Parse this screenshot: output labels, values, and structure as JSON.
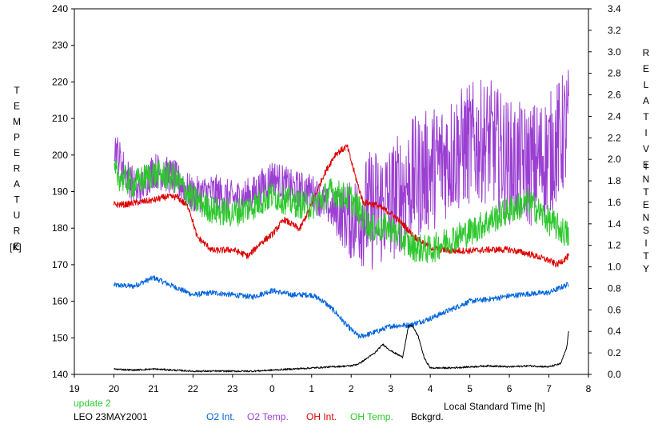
{
  "chart_data": {
    "type": "line",
    "xlabel": "Local Standard Time [h]",
    "x_ticks": [
      "19",
      "20",
      "21",
      "22",
      "23",
      "0",
      "1",
      "2",
      "3",
      "4",
      "5",
      "6",
      "7",
      "8"
    ],
    "x_range_hours": [
      19,
      32
    ],
    "y_left": {
      "label_letters": [
        "T",
        "E",
        "M",
        "P",
        "E",
        "R",
        "A",
        "T",
        "U",
        "R",
        "E"
      ],
      "unit": "[K]",
      "range": [
        140,
        240
      ],
      "ticks": [
        "140",
        "150",
        "160",
        "170",
        "180",
        "190",
        "200",
        "210",
        "220",
        "230",
        "240"
      ]
    },
    "y_right": {
      "label1_letters": [
        "R",
        "E",
        "L",
        "A",
        "T",
        "I",
        "V",
        "E"
      ],
      "label2_letters": [
        "I",
        "N",
        "T",
        "E",
        "N",
        "S",
        "I",
        "T",
        "Y"
      ],
      "range": [
        0,
        3.4
      ],
      "ticks": [
        "0.0",
        "0.2",
        "0.4",
        "0.6",
        "0.8",
        "1.0",
        "1.2",
        "1.4",
        "1.6",
        "1.8",
        "2.0",
        "2.2",
        "2.4",
        "2.6",
        "2.8",
        "3.0",
        "3.2",
        "3.4"
      ]
    },
    "footer": {
      "update": "update 2",
      "station": "LEO 23MAY2001"
    },
    "series": [
      {
        "name": "O2 Int.",
        "axis": "right",
        "color": "#0064dc",
        "x": [
          20.0,
          20.5,
          21.0,
          21.5,
          22.0,
          22.5,
          23.0,
          23.5,
          24.0,
          24.5,
          25.0,
          25.3,
          25.6,
          25.9,
          26.2,
          26.5,
          26.8,
          27.0,
          27.5,
          28.0,
          28.5,
          29.0,
          29.5,
          30.0,
          30.5,
          31.0,
          31.5
        ],
        "y": [
          0.83,
          0.82,
          0.9,
          0.82,
          0.74,
          0.76,
          0.74,
          0.72,
          0.78,
          0.74,
          0.74,
          0.68,
          0.58,
          0.45,
          0.35,
          0.38,
          0.42,
          0.45,
          0.46,
          0.52,
          0.6,
          0.68,
          0.7,
          0.73,
          0.75,
          0.76,
          0.84
        ],
        "noise": 0.025
      },
      {
        "name": "O2 Temp.",
        "axis": "left",
        "color": "#9b3fd2",
        "x": [
          20.0,
          20.3,
          20.6,
          21.0,
          21.5,
          22.0,
          22.5,
          23.0,
          23.5,
          24.0,
          24.5,
          25.0,
          25.5,
          26.0,
          26.5,
          27.0,
          27.5,
          28.0,
          28.5,
          29.0,
          29.5,
          30.0,
          30.5,
          31.0,
          31.5
        ],
        "y": [
          203,
          195,
          190,
          196,
          194,
          189,
          190,
          188,
          189,
          194,
          191,
          190,
          185,
          182,
          185,
          187,
          193,
          196,
          200,
          203,
          204,
          198,
          197,
          200,
          208
        ],
        "noise": 5,
        "noise_grow_after": 25.5,
        "noise_max": 17
      },
      {
        "name": "OH Int.",
        "axis": "right",
        "color": "#dc0000",
        "x": [
          20.0,
          20.3,
          20.6,
          21.0,
          21.3,
          21.6,
          21.9,
          22.1,
          22.5,
          23.0,
          23.4,
          23.7,
          24.0,
          24.3,
          24.7,
          25.0,
          25.3,
          25.6,
          25.9,
          26.1,
          26.3,
          26.6,
          27.0,
          27.3,
          27.6,
          28.0,
          28.5,
          29.0,
          29.5,
          30.0,
          30.5,
          31.0,
          31.2,
          31.5
        ],
        "y": [
          1.58,
          1.58,
          1.6,
          1.62,
          1.65,
          1.65,
          1.55,
          1.28,
          1.15,
          1.16,
          1.1,
          1.22,
          1.3,
          1.44,
          1.35,
          1.58,
          1.85,
          2.05,
          2.12,
          1.85,
          1.6,
          1.58,
          1.5,
          1.4,
          1.28,
          1.18,
          1.15,
          1.15,
          1.16,
          1.16,
          1.12,
          1.06,
          1.02,
          1.1
        ],
        "noise": 0.03
      },
      {
        "name": "OH Temp.",
        "axis": "left",
        "color": "#2ec82e",
        "x": [
          20.0,
          20.5,
          21.0,
          21.5,
          22.0,
          22.5,
          23.0,
          23.5,
          24.0,
          24.5,
          25.0,
          25.5,
          26.0,
          26.5,
          27.0,
          27.5,
          28.0,
          28.5,
          29.0,
          29.5,
          30.0,
          30.5,
          31.0,
          31.5
        ],
        "y": [
          195,
          192,
          195,
          194,
          188,
          185,
          184,
          186,
          189,
          187,
          186,
          190,
          188,
          180,
          180,
          175,
          174,
          177,
          179,
          182,
          185,
          187,
          182,
          178
        ],
        "noise": 4
      },
      {
        "name": "Bckgrd.",
        "axis": "right",
        "color": "#000000",
        "x": [
          20.0,
          20.5,
          21.0,
          21.5,
          22.0,
          22.5,
          23.0,
          23.5,
          24.0,
          24.5,
          25.0,
          25.5,
          26.0,
          26.2,
          26.4,
          26.6,
          26.8,
          27.0,
          27.2,
          27.3,
          27.45,
          27.55,
          27.7,
          27.85,
          28.0,
          28.5,
          29.0,
          29.5,
          30.0,
          30.5,
          31.0,
          31.3,
          31.45,
          31.5
        ],
        "y": [
          0.05,
          0.04,
          0.05,
          0.04,
          0.03,
          0.03,
          0.03,
          0.03,
          0.04,
          0.05,
          0.06,
          0.07,
          0.08,
          0.1,
          0.15,
          0.2,
          0.28,
          0.22,
          0.18,
          0.16,
          0.45,
          0.45,
          0.35,
          0.15,
          0.06,
          0.06,
          0.07,
          0.08,
          0.07,
          0.08,
          0.07,
          0.1,
          0.25,
          0.4
        ],
        "noise": 0.008
      }
    ]
  }
}
